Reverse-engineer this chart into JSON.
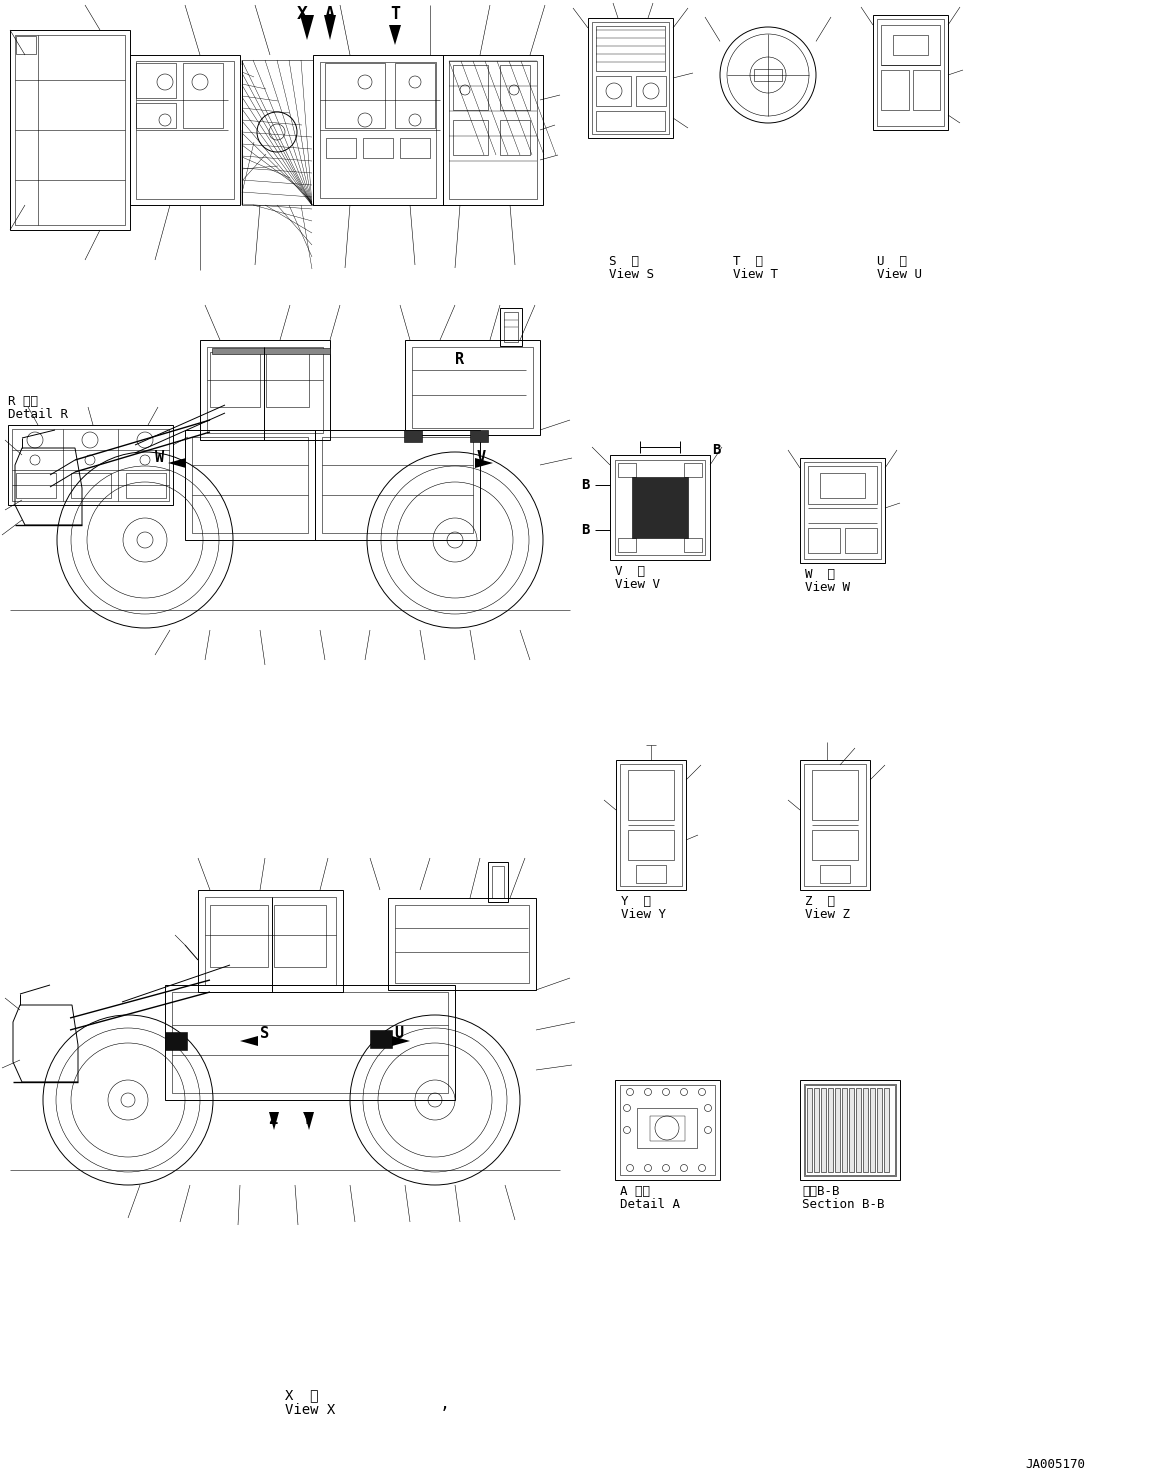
{
  "bg_color": "#ffffff",
  "line_color": "#000000",
  "watermark": "JA005170",
  "figsize": [
    11.51,
    14.81
  ],
  "dpi": 100,
  "lw_thin": 0.4,
  "lw_med": 0.7,
  "lw_thick": 1.0,
  "font_mono": "monospace",
  "labels": {
    "view_s_ja": "S  視",
    "view_s_en": "View S",
    "view_t_ja": "T  視",
    "view_t_en": "View T",
    "view_u_ja": "U  視",
    "view_u_en": "View U",
    "view_v_ja": "V  視",
    "view_v_en": "View V",
    "view_w_ja": "W  視",
    "view_w_en": "View W",
    "view_y_ja": "Y  視",
    "view_y_en": "View Y",
    "view_z_ja": "Z  視",
    "view_z_en": "View Z",
    "view_x_ja": "X  視",
    "view_x_en": "View X",
    "detail_r_ja": "R 詳細",
    "detail_r_en": "Detail R",
    "detail_a_ja": "A 詳細",
    "detail_a_en": "Detail A",
    "section_bb_ja": "断面B-B",
    "section_bb_en": "Section B-B"
  }
}
